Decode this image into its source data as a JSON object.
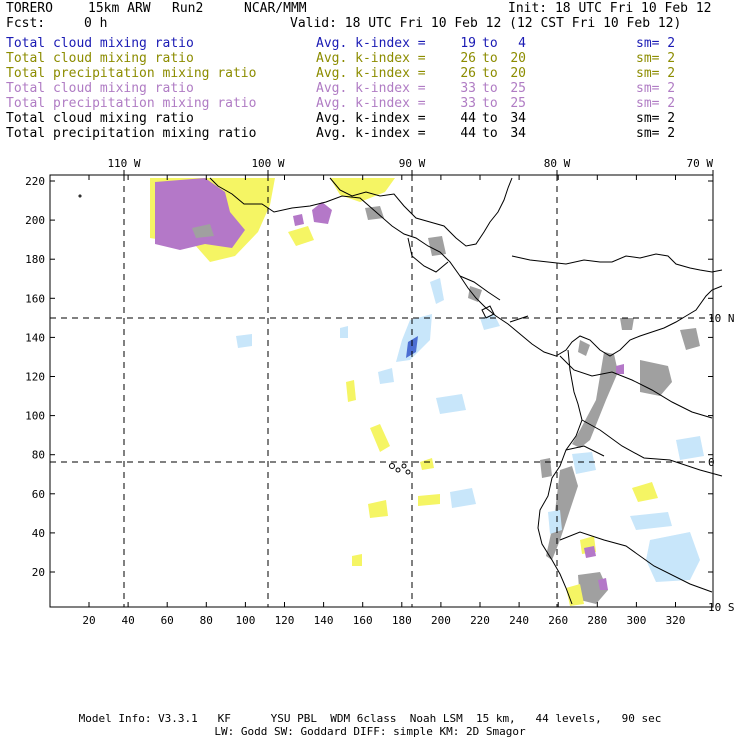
{
  "header": {
    "model": "TORERO",
    "resolution": "15km ARW",
    "run": "Run2",
    "org": "NCAR/MMM",
    "init": "Init: 18 UTC Fri 10 Feb 12",
    "fcst_label": "Fcst:",
    "fcst_value": "0 h",
    "valid": "Valid: 18 UTC Fri 10 Feb 12 (12 CST Fri 10 Feb 12)"
  },
  "legend": [
    {
      "label": "Total cloud mixing ratio",
      "avg": "Avg. k-index =",
      "from": "19",
      "to_word": "to",
      "to": "4",
      "sm": "sm= 2",
      "color": "#1a1ab4"
    },
    {
      "label": "Total cloud mixing ratio",
      "avg": "Avg. k-index =",
      "from": "26",
      "to_word": "to",
      "to": "20",
      "sm": "sm= 2",
      "color": "#8c8c00"
    },
    {
      "label": "Total precipitation mixing ratio",
      "avg": "Avg. k-index =",
      "from": "26",
      "to_word": "to",
      "to": "20",
      "sm": "sm= 2",
      "color": "#8c8c00"
    },
    {
      "label": "Total cloud mixing ratio",
      "avg": "Avg. k-index =",
      "from": "33",
      "to_word": "to",
      "to": "25",
      "sm": "sm= 2",
      "color": "#b07cc4"
    },
    {
      "label": "Total precipitation mixing ratio",
      "avg": "Avg. k-index =",
      "from": "33",
      "to_word": "to",
      "to": "25",
      "sm": "sm= 2",
      "color": "#b07cc4"
    },
    {
      "label": "Total cloud mixing ratio",
      "avg": "Avg. k-index =",
      "from": "44",
      "to_word": "to",
      "to": "34",
      "sm": "sm= 2",
      "color": "#000000"
    },
    {
      "label": "Total precipitation mixing ratio",
      "avg": "Avg. k-index =",
      "from": "44",
      "to_word": "to",
      "to": "34",
      "sm": "sm= 2",
      "color": "#000000"
    }
  ],
  "map": {
    "lon_labels": [
      "110 W",
      "100 W",
      "90 W",
      "80 W",
      "70 W"
    ],
    "lat_labels": [
      "10 N",
      "0",
      "10 S"
    ],
    "y_ticks": [
      "220",
      "200",
      "180",
      "160",
      "140",
      "120",
      "100",
      "80",
      "60",
      "40",
      "20"
    ],
    "x_ticks": [
      "20",
      "40",
      "60",
      "80",
      "100",
      "120",
      "140",
      "160",
      "180",
      "200",
      "220",
      "240",
      "260",
      "280",
      "300",
      "320"
    ],
    "colors": {
      "light_blue": "#c8e6fa",
      "blue": "#4b6ed2",
      "yellow": "#f5f564",
      "purple": "#b478c8",
      "gray": "#a0a0a0"
    }
  },
  "footer": {
    "line1": "Model Info: V3.3.1   KF      YSU PBL  WDM 6class  Noah LSM  15 km,   44 levels,   90 sec",
    "line2": "LW: Godd SW: Goddard DIFF: simple KM: 2D Smagor"
  }
}
